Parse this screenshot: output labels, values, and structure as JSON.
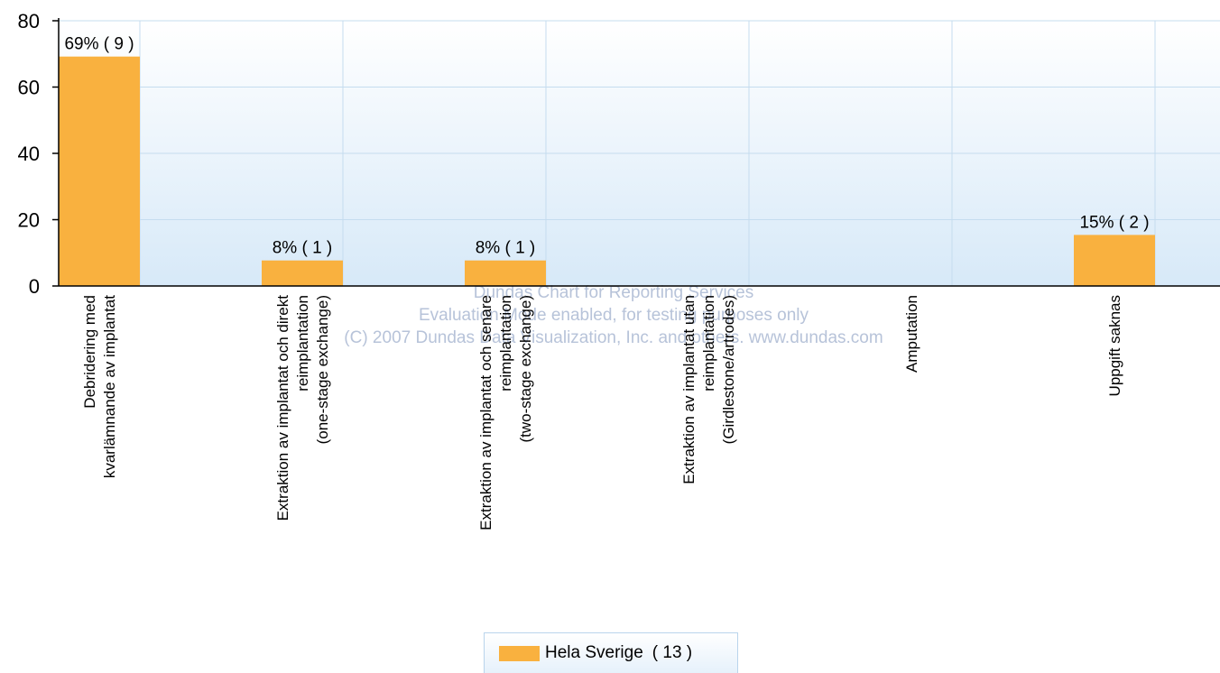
{
  "chart_data": {
    "type": "bar",
    "categories": [
      [
        "Debridering med",
        "kvarlämnande av implantat"
      ],
      [
        "Extraktion av implantat och direkt",
        "reimplantation",
        "(one-stage exchange)"
      ],
      [
        "Extraktion av implantat och senare",
        "reimplantation",
        "(two-stage exchange)"
      ],
      [
        "Extraktion av implantat utan",
        "reimplantation",
        "(Girdlestone/artrodes)"
      ],
      [
        "Amputation"
      ],
      [
        "Uppgift saknas"
      ]
    ],
    "series": [
      {
        "name": "Hela Sverige",
        "color": "#f9b13f",
        "values": [
          69.2,
          7.7,
          7.7,
          0,
          0,
          15.4
        ],
        "data_labels": [
          "69% ( 9 )",
          "8% ( 1 )",
          "8% ( 1 )",
          "",
          "",
          "15% ( 2 )"
        ]
      }
    ],
    "ylim": [
      0,
      80
    ],
    "yticks": [
      0,
      20,
      40,
      60,
      80
    ],
    "grid": true,
    "legend": {
      "placement": "bottom-center",
      "name": "Hela Sverige",
      "count": "( 13 )"
    },
    "watermark": [
      "Dundas Chart for Reporting Services",
      "Evaluation Mode enabled, for testing purposes only",
      "(C) 2007 Dundas Data Visualization, Inc. and others. www.dundas.com"
    ]
  }
}
